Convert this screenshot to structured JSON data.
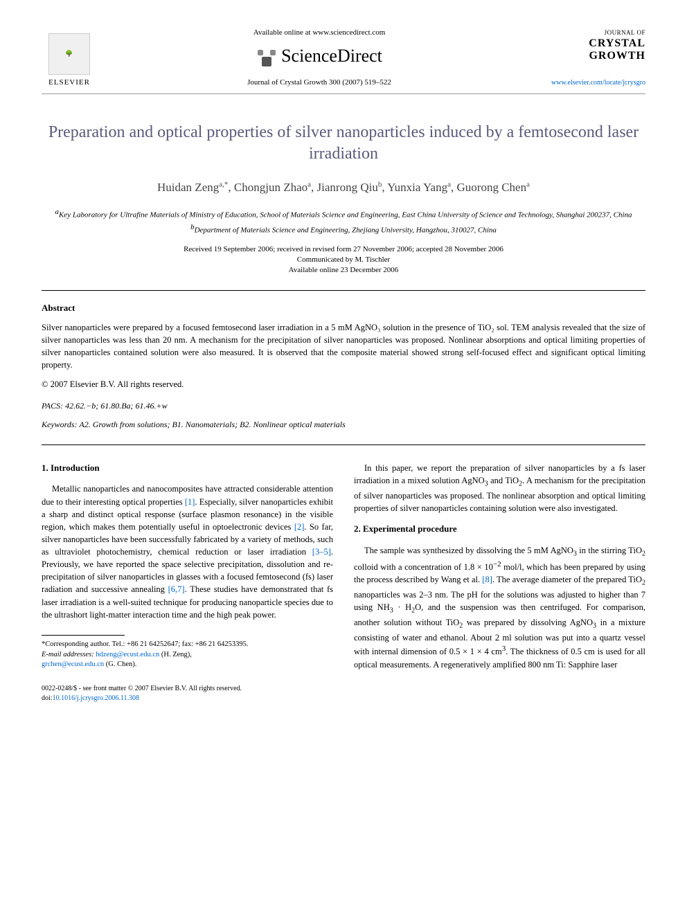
{
  "header": {
    "elsevier": "ELSEVIER",
    "available_online": "Available online at www.sciencedirect.com",
    "sciencedirect": "ScienceDirect",
    "journal_ref": "Journal of Crystal Growth 300 (2007) 519–522",
    "journal_small": "JOURNAL OF",
    "journal_name_1": "CRYSTAL",
    "journal_name_2": "GROWTH",
    "journal_url": "www.elsevier.com/locate/jcrysgro"
  },
  "title": "Preparation and optical properties of silver nanoparticles induced by a femtosecond laser irradiation",
  "authors_html": "Huidan Zeng",
  "author_list": [
    {
      "name": "Huidan Zeng",
      "mark": "a,*"
    },
    {
      "name": "Chongjun Zhao",
      "mark": "a"
    },
    {
      "name": "Jianrong Qiu",
      "mark": "b"
    },
    {
      "name": "Yunxia Yang",
      "mark": "a"
    },
    {
      "name": "Guorong Chen",
      "mark": "a"
    }
  ],
  "affiliations": {
    "a": "Key Laboratory for Ultrafine Materials of Ministry of Education, School of Materials Science and Engineering, East China University of Science and Technology, Shanghai 200237, China",
    "b": "Department of Materials Science and Engineering, Zhejiang University, Hangzhou, 310027, China"
  },
  "dates": {
    "received": "Received 19 September 2006; received in revised form 27 November 2006; accepted 28 November 2006",
    "communicated": "Communicated by M. Tischler",
    "online": "Available online 23 December 2006"
  },
  "abstract": {
    "heading": "Abstract",
    "text": "Silver nanoparticles were prepared by a focused femtosecond laser irradiation in a 5 mM AgNO₃ solution in the presence of TiO₂ sol. TEM analysis revealed that the size of silver nanoparticles was less than 20 nm. A mechanism for the precipitation of silver nanoparticles was proposed. Nonlinear absorptions and optical limiting properties of silver nanoparticles contained solution were also measured. It is observed that the composite material showed strong self-focused effect and significant optical limiting property.",
    "copyright": "© 2007 Elsevier B.V. All rights reserved."
  },
  "pacs": {
    "label": "PACS:",
    "value": "42.62.−b; 61.80.Ba; 61.46.+w"
  },
  "keywords": {
    "label": "Keywords:",
    "value": "A2. Growth from solutions; B1. Nanomaterials; B2. Nonlinear optical materials"
  },
  "sections": {
    "intro": {
      "heading": "1. Introduction",
      "p1": "Metallic nanoparticles and nanocomposites have attracted considerable attention due to their interesting optical properties [1]. Especially, silver nanoparticles exhibit a sharp and distinct optical response (surface plasmon resonance) in the visible region, which makes them potentially useful in optoelectronic devices [2]. So far, silver nanoparticles have been successfully fabricated by a variety of methods, such as ultraviolet photochemistry, chemical reduction or laser irradiation [3–5]. Previously, we have reported the space selective precipitation, dissolution and re-precipitation of silver nanoparticles in glasses with a focused femtosecond (fs) laser radiation and successive annealing [6,7]. These studies have demonstrated that fs laser irradiation is a well-suited technique for producing nanoparticle species due to the ultrashort light-matter interaction time and the high peak power.",
      "p2": "In this paper, we report the preparation of silver nanoparticles by a fs laser irradiation in a mixed solution AgNO₃ and TiO₂. A mechanism for the precipitation of silver nanoparticles was proposed. The nonlinear absorption and optical limiting properties of silver nanoparticles containing solution were also investigated."
    },
    "exp": {
      "heading": "2. Experimental procedure",
      "p1": "The sample was synthesized by dissolving the 5 mM AgNO₃ in the stirring TiO₂ colloid with a concentration of 1.8 × 10⁻² mol/l, which has been prepared by using the process described by Wang et al. [8]. The average diameter of the prepared TiO₂ nanoparticles was 2–3 nm. The pH for the solutions was adjusted to higher than 7 using NH₃ · H₂O, and the suspension was then centrifuged. For comparison, another solution without TiO₂ was prepared by dissolving AgNO₃ in a mixture consisting of water and ethanol. About 2 ml solution was put into a quartz vessel with internal dimension of 0.5 × 1 × 4 cm³. The thickness of 0.5 cm is used for all optical measurements. A regeneratively amplified 800 nm Ti: Sapphire laser"
    }
  },
  "footnote": {
    "corresponding": "*Corresponding author. Tel.: +86 21 64252647; fax: +86 21 64253395.",
    "email_label": "E-mail addresses:",
    "email1": "hdzeng@ecust.edu.cn",
    "email1_name": "(H. Zeng),",
    "email2": "grchen@ecust.edu.cn",
    "email2_name": "(G. Chen)."
  },
  "bottom": {
    "issn": "0022-0248/$ - see front matter © 2007 Elsevier B.V. All rights reserved.",
    "doi_label": "doi:",
    "doi": "10.1016/j.jcrysgro.2006.11.308"
  },
  "colors": {
    "title_color": "#5a5a7a",
    "link_color": "#0066cc",
    "text_color": "#000000"
  }
}
